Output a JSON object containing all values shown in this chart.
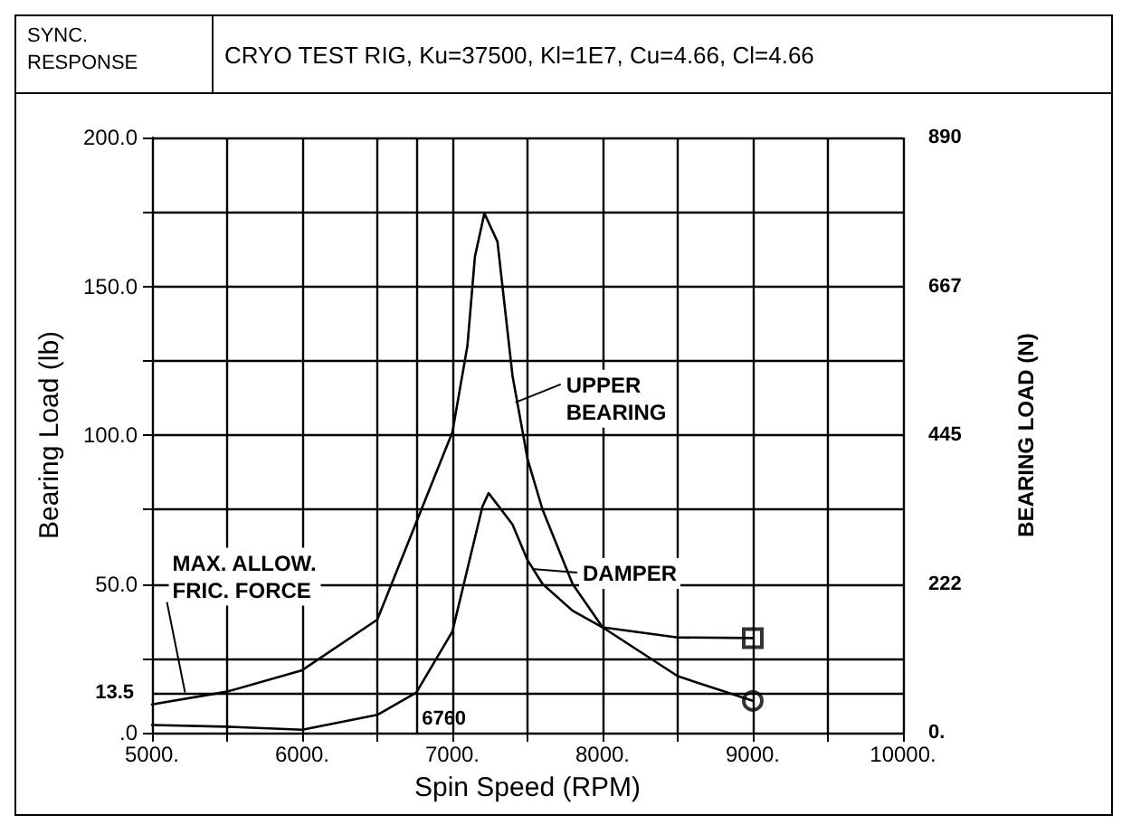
{
  "chart_data": {
    "type": "line",
    "title": "SYNC. RESPONSE",
    "subtitle": "CRYO TEST RIG, Ku=37500, Kl=1E7, Cu=4.66, Cl=4.66",
    "xlabel": "Spin Speed (RPM)",
    "ylabel": "Bearing Load (lb)",
    "y2label": "BEARING LOAD (N)",
    "series": [
      {
        "type": "line",
        "color": "#000000",
        "x": [
          5000,
          5500,
          6000,
          6500,
          7000,
          7100,
          7150,
          7213,
          7300,
          7400,
          7500,
          7600,
          7800,
          8000,
          8500,
          9000
        ],
        "values": [
          9.5,
          13.8,
          21,
          38,
          101,
          130,
          160,
          174.5,
          165,
          120,
          92,
          75,
          50,
          35.4,
          19,
          10.7
        ]
      },
      {
        "type": "line",
        "color": "#000000",
        "x": [
          5000,
          5500,
          6000,
          6500,
          6760,
          7000,
          7100,
          7200,
          7241,
          7400,
          7500,
          7600,
          7800,
          8000,
          8500,
          9000
        ],
        "values": [
          2.6,
          2,
          1,
          6,
          13.5,
          34,
          55,
          76,
          80.5,
          70,
          58,
          50,
          41,
          35.4,
          32,
          31.8
        ]
      },
      {
        "type": "scatter",
        "color": "#000000",
        "marker": "square",
        "x": [
          9000
        ],
        "values": [
          31.8
        ]
      },
      {
        "type": "scatter",
        "color": "#000000",
        "marker": "circle",
        "x": [
          9000
        ],
        "values": [
          10.7
        ]
      }
    ],
    "xlim": [
      5000,
      10000
    ],
    "xticks": [
      {
        "value": 5000,
        "label": "5000."
      },
      {
        "value": 5500,
        "label": null
      },
      {
        "value": 6000,
        "label": "6000."
      },
      {
        "value": 6500,
        "label": null
      },
      {
        "value": 7000,
        "label": "7000."
      },
      {
        "value": 7500,
        "label": null
      },
      {
        "value": 8000,
        "label": "8000."
      },
      {
        "value": 8500,
        "label": null
      },
      {
        "value": 9000,
        "label": "9000."
      },
      {
        "value": 9500,
        "label": null
      },
      {
        "value": 10000,
        "label": "10000."
      }
    ],
    "ylim": [
      0,
      200
    ],
    "yticks": [
      {
        "value": 0,
        "label": ".0"
      },
      {
        "value": 25,
        "label": null
      },
      {
        "value": 50,
        "label": "50.0"
      },
      {
        "value": 75,
        "label": null
      },
      {
        "value": 100,
        "label": "100.0"
      },
      {
        "value": 125,
        "label": null
      },
      {
        "value": 150,
        "label": "150.0"
      },
      {
        "value": 175,
        "label": null
      },
      {
        "value": 200,
        "label": "200.0"
      }
    ],
    "y2lim": [
      0,
      890
    ],
    "y2ticks": [
      {
        "value": 0,
        "label": "0."
      },
      222,
      445,
      667,
      890
    ],
    "grid": true,
    "ref_lines": [
      {
        "axis": "y",
        "value": 13.5,
        "label": "13.5"
      },
      {
        "axis": "x",
        "value": 6760,
        "label": "6760"
      }
    ],
    "annotations": [
      {
        "text": "UPPER BEARING",
        "x": 7420,
        "y": 111
      },
      {
        "text": "DAMPER",
        "x": 7530,
        "y": 55
      },
      {
        "text": "MAX. ALLOW. FRIC. FORCE",
        "x": 5220,
        "y": 13.5
      }
    ]
  }
}
